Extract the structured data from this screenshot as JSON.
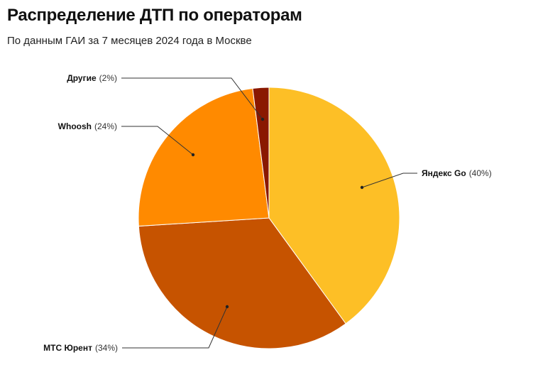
{
  "header": {
    "title": "Распределение ДТП по операторам",
    "subtitle": "По данным ГАИ за 7 месяцев 2024 года в Москве"
  },
  "chart_data": {
    "type": "pie",
    "title": "Распределение ДТП по операторам",
    "subtitle": "По данным ГАИ за 7 месяцев 2024 года в Москве",
    "categories": [
      "Яндекс Go",
      "МТС Юрент",
      "Whoosh",
      "Другие"
    ],
    "values": [
      40,
      34,
      24,
      2
    ],
    "unit": "%",
    "colors": [
      "#FDBF26",
      "#C65300",
      "#FF8A00",
      "#8A1800"
    ],
    "start_angle": "12 o'clock, clockwise",
    "labels": [
      {
        "name": "Яндекс Go",
        "pct": "(40%)"
      },
      {
        "name": "МТС Юрент",
        "pct": "(34%)"
      },
      {
        "name": "Whoosh",
        "pct": "(24%)"
      },
      {
        "name": "Другие",
        "pct": "(2%)"
      }
    ],
    "legend": "none (leader-line labels)"
  }
}
